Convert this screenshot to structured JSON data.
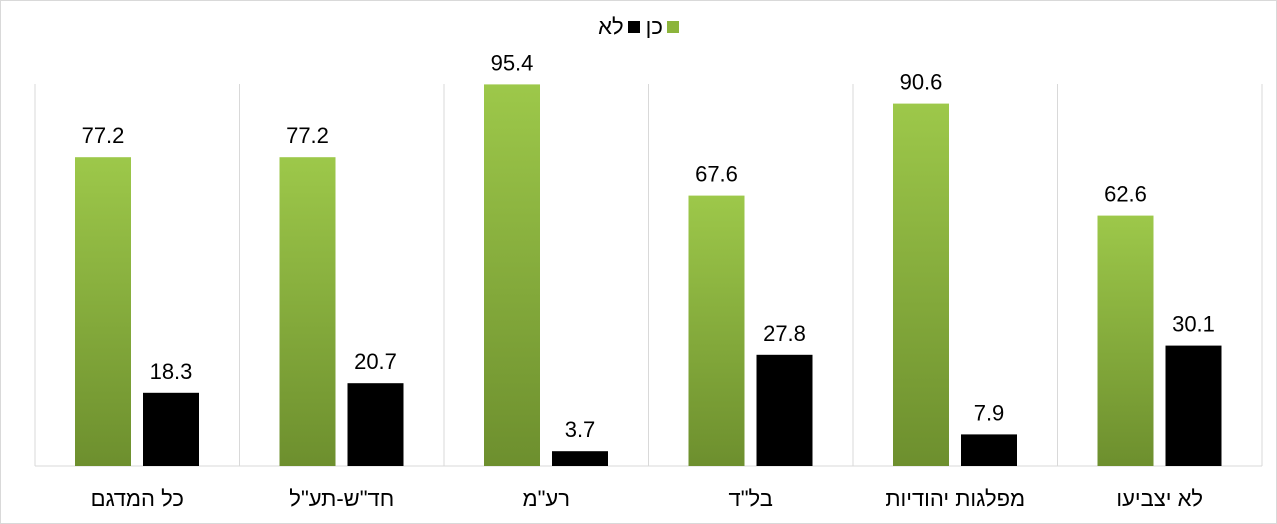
{
  "chart_data": {
    "type": "bar",
    "categories": [
      "כל המדגם",
      "חד\"ש-תע\"ל",
      "רע\"מ",
      "בל\"ד",
      "מפלגות יהודיות",
      "לא יצביעו"
    ],
    "series": [
      {
        "name": "כן",
        "values": [
          77.2,
          77.2,
          95.4,
          67.6,
          90.6,
          62.6
        ],
        "color": "#8cb43c"
      },
      {
        "name": "לא",
        "values": [
          18.3,
          20.7,
          3.7,
          27.8,
          7.9,
          30.1
        ],
        "color": "#000000"
      }
    ],
    "ylim": [
      0,
      100
    ],
    "grid": "vertical-separators",
    "legend": "top-center",
    "data_labels": true
  }
}
